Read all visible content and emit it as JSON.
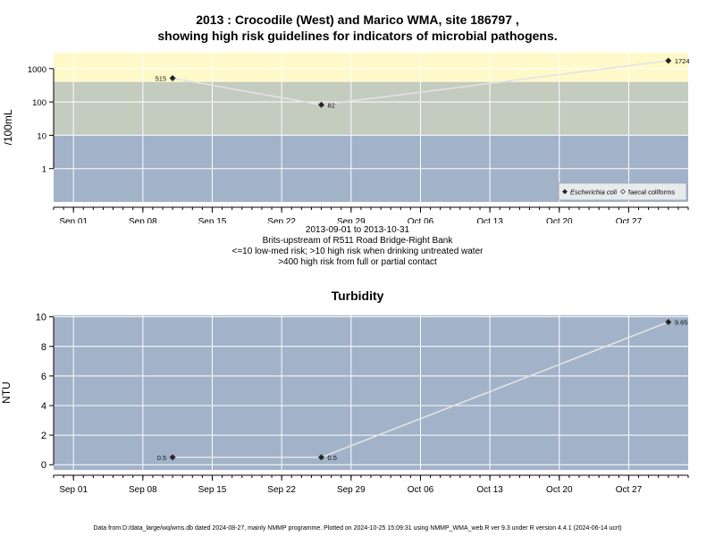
{
  "header": {
    "title_line1": "2013 : Crocodile (West) and Marico WMA, site 186797 ,",
    "title_line2": "showing high risk guidelines for indicators of microbial pathogens."
  },
  "panel1": {
    "date_range": "2013-09-01 to 2013-10-31",
    "site_name": "Brits-upstream of R511 Road Bridge-Right Bank",
    "guideline_1": "<=10 low-med risk; >10 high risk when drinking untreated water",
    "guideline_2": ">400 high risk from full or partial contact"
  },
  "panel2": {
    "title": "Turbidity"
  },
  "footer": {
    "text": "Data from D:/data_large/wq/wms.db dated 2024-08-27, mainly NMMP programme. Plotted on 2024-10-25 15:09:31 using NMMP_WMA_web.R ver 9.3 under R version 4.4.1 (2024-06-14 ucrt)"
  },
  "colors": {
    "band_high": "#fff9c9",
    "band_mid": "#c4cbbf",
    "band_low": "#a2b2c9",
    "grid": "#ffffff",
    "line": "#e3e3e3",
    "point": "#222222"
  },
  "chart_data": [
    {
      "type": "line",
      "ylabel": "/100mL",
      "y_scale": "log",
      "ylim": [
        0.1,
        3000
      ],
      "y_ticks": [
        1,
        10,
        100,
        1000
      ],
      "y_tick_labels": [
        "1",
        "10",
        "100",
        "1000"
      ],
      "bands": [
        {
          "from": 0.1,
          "to": 10,
          "color": "#a2b2c9"
        },
        {
          "from": 10,
          "to": 400,
          "color": "#c4cbbf"
        },
        {
          "from": 400,
          "to": 3000,
          "color": "#fff9c9"
        }
      ],
      "x_ticks": [
        "2013-09-01",
        "2013-09-08",
        "2013-09-15",
        "2013-09-22",
        "2013-09-29",
        "2013-10-06",
        "2013-10-13",
        "2013-10-20",
        "2013-10-27"
      ],
      "x_tick_labels": [
        "Sep 01",
        "Sep 08",
        "Sep 15",
        "Sep 22",
        "Sep 29",
        "Oct 06",
        "Oct 13",
        "Oct 20",
        "Oct 27"
      ],
      "xlim": [
        "2013-08-30",
        "2013-11-02"
      ],
      "grid": true,
      "legend_position": "bottom-right",
      "legend": [
        {
          "label": "Escherichia coli",
          "italic": true,
          "marker": "filled-diamond"
        },
        {
          "label": "faecal coliforms",
          "italic": false,
          "marker": "open-diamond"
        }
      ],
      "series": [
        {
          "name": "Escherichia coli",
          "points": [
            {
              "x": "2013-09-11",
              "y": 515,
              "label": "515",
              "label_side": "left"
            },
            {
              "x": "2013-09-26",
              "y": 82,
              "label": "82",
              "label_side": "right"
            },
            {
              "x": "2013-10-31",
              "y": 1724,
              "label": "1724",
              "label_side": "right"
            }
          ]
        }
      ]
    },
    {
      "type": "line",
      "title": "Turbidity",
      "ylabel": "NTU",
      "ylim": [
        -0.35,
        10.1
      ],
      "y_ticks": [
        0,
        2,
        4,
        6,
        8,
        10
      ],
      "y_tick_labels": [
        "0",
        "2",
        "4",
        "6",
        "8",
        "10"
      ],
      "x_ticks": [
        "2013-09-01",
        "2013-09-08",
        "2013-09-15",
        "2013-09-22",
        "2013-09-29",
        "2013-10-06",
        "2013-10-13",
        "2013-10-20",
        "2013-10-27"
      ],
      "x_tick_labels": [
        "Sep 01",
        "Sep 08",
        "Sep 15",
        "Sep 22",
        "Sep 29",
        "Oct 06",
        "Oct 13",
        "Oct 20",
        "Oct 27"
      ],
      "xlim": [
        "2013-08-30",
        "2013-11-02"
      ],
      "grid": true,
      "series": [
        {
          "name": "Turbidity",
          "points": [
            {
              "x": "2013-09-11",
              "y": 0.5,
              "label": "0.5",
              "label_side": "left"
            },
            {
              "x": "2013-09-26",
              "y": 0.5,
              "label": "0.5",
              "label_side": "right"
            },
            {
              "x": "2013-10-31",
              "y": 9.65,
              "label": "9.65",
              "label_side": "right"
            }
          ]
        }
      ]
    }
  ]
}
